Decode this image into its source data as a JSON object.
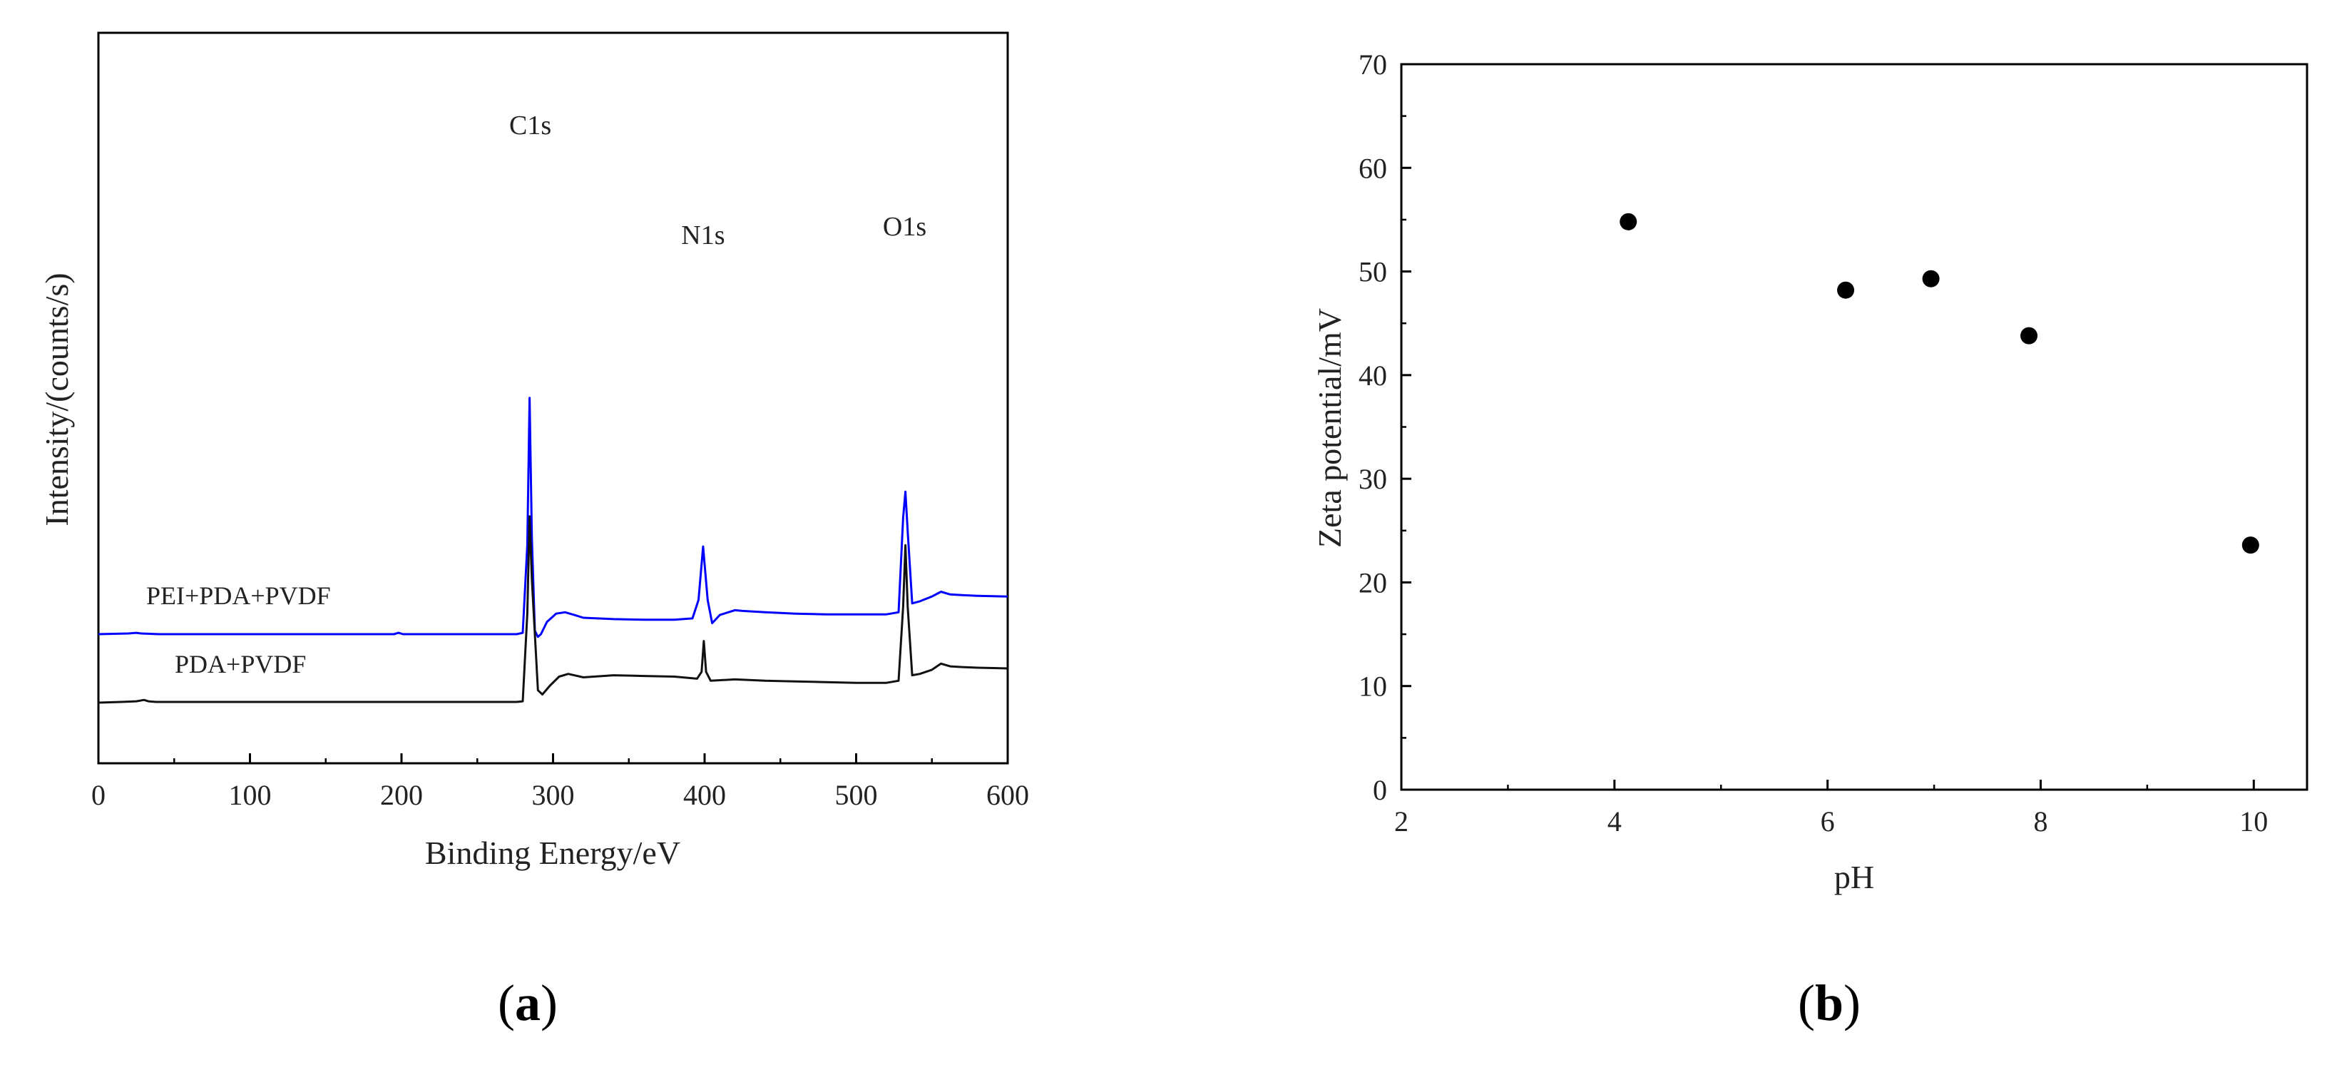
{
  "chart_data": [
    {
      "type": "line",
      "panel_label": "a",
      "xlabel": "Binding Energy/eV",
      "ylabel": "Intensity/(counts/s)",
      "xlim": [
        0,
        600
      ],
      "x_ticks": [
        "0",
        "100",
        "200",
        "300",
        "400",
        "500",
        "600"
      ],
      "y_ticks_shown": false,
      "grid": false,
      "series": [
        {
          "name": "PEI+PDA+PVDF",
          "color": "#0000ff",
          "x": [
            0,
            20,
            25,
            28,
            40,
            100,
            160,
            195,
            198,
            201,
            210,
            260,
            276,
            280,
            283,
            284.5,
            286,
            288,
            290,
            292,
            296,
            302,
            308,
            314,
            320,
            340,
            360,
            380,
            392,
            396,
            399,
            402,
            405,
            410,
            420,
            425,
            440,
            460,
            480,
            500,
            520,
            528,
            531,
            532.5,
            534,
            537,
            542,
            550,
            556,
            562,
            570,
            580,
            600
          ],
          "y": [
            1.0,
            1.01,
            1.02,
            1.01,
            1.0,
            1.0,
            1.0,
            1.0,
            1.02,
            1.0,
            1.0,
            1.0,
            1.0,
            1.02,
            2.3,
            4.45,
            2.4,
            1.05,
            0.96,
            1.0,
            1.18,
            1.3,
            1.32,
            1.28,
            1.24,
            1.22,
            1.21,
            1.21,
            1.23,
            1.5,
            2.28,
            1.5,
            1.16,
            1.28,
            1.35,
            1.34,
            1.32,
            1.3,
            1.29,
            1.29,
            1.29,
            1.32,
            2.7,
            3.08,
            2.5,
            1.45,
            1.48,
            1.55,
            1.62,
            1.58,
            1.57,
            1.56,
            1.55
          ]
        },
        {
          "name": "PDA+PVDF",
          "color": "#111111",
          "x": [
            0,
            15,
            25,
            30,
            33,
            38,
            60,
            100,
            200,
            250,
            276,
            280,
            283,
            284.5,
            286,
            288,
            290,
            293,
            298,
            304,
            310,
            320,
            340,
            360,
            380,
            395,
            398,
            399.5,
            401,
            404,
            420,
            440,
            460,
            480,
            500,
            520,
            528,
            531,
            532.5,
            534,
            537,
            542,
            550,
            556,
            562,
            570,
            580,
            600
          ],
          "y": [
            0.0,
            0.01,
            0.02,
            0.04,
            0.02,
            0.01,
            0.01,
            0.01,
            0.01,
            0.01,
            0.01,
            0.02,
            1.3,
            2.72,
            1.8,
            1.0,
            0.18,
            0.12,
            0.25,
            0.38,
            0.42,
            0.37,
            0.4,
            0.39,
            0.38,
            0.35,
            0.45,
            0.9,
            0.45,
            0.32,
            0.34,
            0.32,
            0.31,
            0.3,
            0.29,
            0.29,
            0.32,
            1.4,
            2.3,
            1.4,
            0.4,
            0.42,
            0.48,
            0.57,
            0.53,
            0.52,
            0.51,
            0.5
          ]
        }
      ],
      "series_labels": [
        "PEI+PDA+PVDF",
        "PDA+PVDF"
      ],
      "annotations": [
        {
          "text": "C1s",
          "x": 285
        },
        {
          "text": "N1s",
          "x": 399
        },
        {
          "text": "O1s",
          "x": 532
        }
      ]
    },
    {
      "type": "scatter",
      "panel_label": "b",
      "xlabel": "pH",
      "ylabel": "Zeta potential/mV",
      "xlim": [
        2,
        10.5
      ],
      "ylim": [
        0,
        70
      ],
      "x_ticks": [
        "2",
        "4",
        "6",
        "8",
        "10"
      ],
      "y_ticks": [
        "0",
        "10",
        "20",
        "30",
        "40",
        "50",
        "60",
        "70"
      ],
      "grid": false,
      "marker_color": "#000000",
      "series": [
        {
          "x": [
            4.13,
            6.17,
            6.97,
            7.89,
            9.97
          ],
          "y": [
            54.8,
            48.2,
            49.3,
            43.8,
            23.6
          ]
        }
      ]
    }
  ]
}
